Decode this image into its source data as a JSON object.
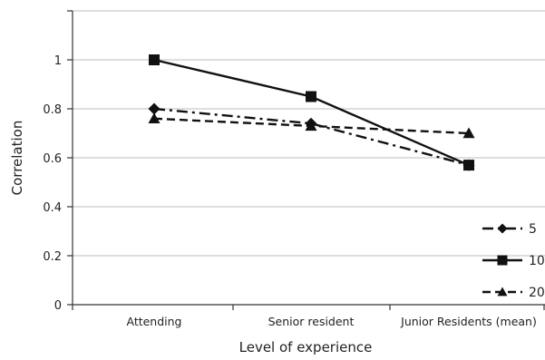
{
  "chart_data": {
    "type": "line",
    "categories": [
      "Attending",
      "Senior resident",
      "Junior Residents (mean)"
    ],
    "series": [
      {
        "name": "5",
        "values": [
          0.8,
          0.74,
          0.57
        ],
        "marker": "diamond",
        "dash": "dash-dot",
        "color": "#111111"
      },
      {
        "name": "10",
        "values": [
          1.0,
          0.85,
          0.57
        ],
        "marker": "square",
        "dash": "solid",
        "color": "#111111"
      },
      {
        "name": "20",
        "values": [
          0.76,
          0.73,
          0.7
        ],
        "marker": "triangle",
        "dash": "dash",
        "color": "#111111"
      }
    ],
    "xlabel": "Level of experience",
    "ylabel": "Correlation",
    "ylim": [
      0,
      1.2
    ],
    "yticks": [
      "0",
      "0.2",
      "0.4",
      "0.6",
      "0.8",
      "1"
    ],
    "ytick_values": [
      0,
      0.2,
      0.4,
      0.6,
      0.8,
      1.0
    ],
    "grid": true,
    "legend_position": "right"
  }
}
